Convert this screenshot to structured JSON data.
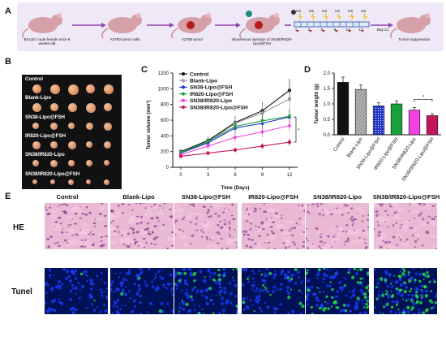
{
  "panel_labels": {
    "a": "A",
    "b": "B",
    "c": "C",
    "d": "D",
    "e": "E"
  },
  "timeline": {
    "step1": "BALB/c nude female mice 6 weeks-old",
    "step2": "A2780 tumor cells",
    "step3": "A2780 tumor",
    "step4": "Intravenous injection of SN38/IR820-Lipo@FSH",
    "step5": "Tumor suppression",
    "us_label": "US",
    "days": [
      "1",
      "3",
      "5",
      "9",
      "13",
      "17"
    ],
    "day_end": "Day 21"
  },
  "photo_rows": [
    "Control",
    "Blank-Lipo",
    "SN38-Lipo@FSH",
    "IR820-Lipo@FSH",
    "SN38/IR820-Lipo",
    "SN38/IR820-Lipo@FSH"
  ],
  "colors": {
    "control": "#111111",
    "blank": "#9a9a9a",
    "sn38": "#2233cc",
    "ir820": "#19a03a",
    "sn38ir820": "#ee44dd",
    "combo": "#c2185b"
  },
  "chart_data": [
    {
      "type": "line",
      "xlabel": "Time (Days)",
      "ylabel": "Tumor volume (mm³)",
      "ylim": [
        0,
        1200
      ],
      "yticks": [
        "0",
        "200",
        "400",
        "600",
        "800",
        "1000",
        "1200"
      ],
      "x": [
        0,
        3,
        6,
        9,
        12
      ],
      "xticks": [
        "0",
        "3",
        "6",
        "9",
        "12"
      ],
      "significance": "*",
      "series": [
        {
          "name": "Control",
          "values": [
            200,
            340,
            570,
            720,
            980
          ]
        },
        {
          "name": "Blank-Lipo",
          "values": [
            190,
            320,
            560,
            690,
            870
          ]
        },
        {
          "name": "SN38-Lipo@FSH",
          "values": [
            180,
            310,
            500,
            560,
            640
          ]
        },
        {
          "name": "IR820-Lipo@FSH",
          "values": [
            185,
            330,
            520,
            590,
            650
          ]
        },
        {
          "name": "SN38/IR820-Lipo",
          "values": [
            160,
            270,
            380,
            450,
            530
          ]
        },
        {
          "name": "SN38/IR820-Lipo@FSH",
          "values": [
            140,
            180,
            220,
            270,
            320
          ]
        }
      ]
    },
    {
      "type": "bar",
      "ylabel": "Tumor weight (g)",
      "ylim": [
        0,
        2.0
      ],
      "yticks": [
        "0.0",
        "0.5",
        "1.0",
        "1.5",
        "2.0"
      ],
      "categories": [
        "Control",
        "Blank-Lipo",
        "SN38-Lipo@FSH",
        "IR820-Lipo@FSH",
        "SN38/IR820-Lipo",
        "SN38/IR820-Lipo@FSH"
      ],
      "values": [
        1.7,
        1.47,
        0.94,
        1.0,
        0.8,
        0.62
      ],
      "significance": "*"
    }
  ],
  "histology": {
    "columns": [
      "Control",
      "Blank-Lipo",
      "SN38-Lipo@FSH",
      "IR820-Lipo@FSH",
      "SN38/IR820-Lipo",
      "SN38/IR820-Lipo@FSH"
    ],
    "rows": [
      "HE",
      "Tunel"
    ]
  }
}
